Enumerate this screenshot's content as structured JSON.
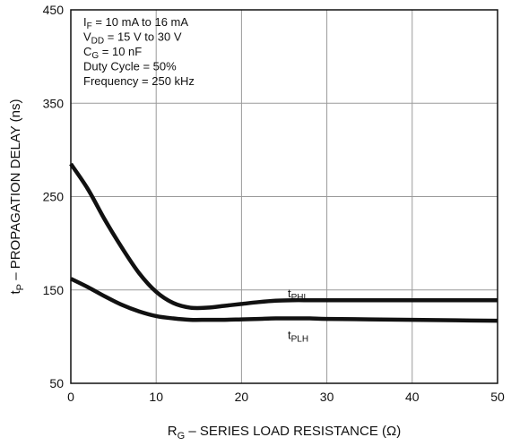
{
  "chart_data": {
    "type": "line",
    "xlabel": {
      "main": "R",
      "sub": "G",
      "rest": " – SERIES LOAD RESISTANCE (Ω)"
    },
    "ylabel": {
      "main": "t",
      "sub": "P",
      "rest": " – PROPAGATION DELAY (ns)"
    },
    "xlim": [
      0,
      50
    ],
    "ylim": [
      50,
      450
    ],
    "xticks": [
      0,
      10,
      20,
      30,
      40,
      50
    ],
    "yticks": [
      50,
      150,
      250,
      350,
      450
    ],
    "grid": true,
    "conditions": [
      {
        "main": "I",
        "sub": "F",
        "rest": " = 10 mA to 16 mA"
      },
      {
        "main": "V",
        "sub": "DD",
        "rest": " = 15 V to 30 V"
      },
      {
        "main": "C",
        "sub": "G",
        "rest": " = 10 nF"
      },
      {
        "main": "Duty Cycle = 50%",
        "sub": "",
        "rest": ""
      },
      {
        "main": "Frequency = 250 kHz",
        "sub": "",
        "rest": ""
      }
    ],
    "series": [
      {
        "name": "PHL",
        "label": {
          "main": "t",
          "sub": "PHL"
        },
        "label_at": [
          25,
          150
        ],
        "x": [
          0,
          2,
          4,
          6,
          8,
          10,
          12,
          14,
          16,
          18,
          20,
          22,
          24,
          26,
          28,
          30,
          35,
          40,
          45,
          50
        ],
        "y": [
          285,
          258,
          225,
          195,
          168,
          148,
          136,
          131,
          131,
          133,
          135,
          137,
          138.5,
          139,
          139,
          139,
          139,
          139,
          139,
          139
        ]
      },
      {
        "name": "PLH",
        "label": {
          "main": "t",
          "sub": "PLH"
        },
        "label_at": [
          25,
          105
        ],
        "x": [
          0,
          2,
          4,
          6,
          8,
          10,
          12,
          14,
          16,
          18,
          20,
          22,
          24,
          26,
          28,
          30,
          35,
          40,
          45,
          50
        ],
        "y": [
          162,
          153,
          143,
          134,
          127,
          122,
          119.5,
          118,
          118,
          118,
          118.5,
          119,
          119.5,
          119.5,
          119.5,
          119,
          118.5,
          118,
          117.5,
          117
        ]
      }
    ]
  }
}
